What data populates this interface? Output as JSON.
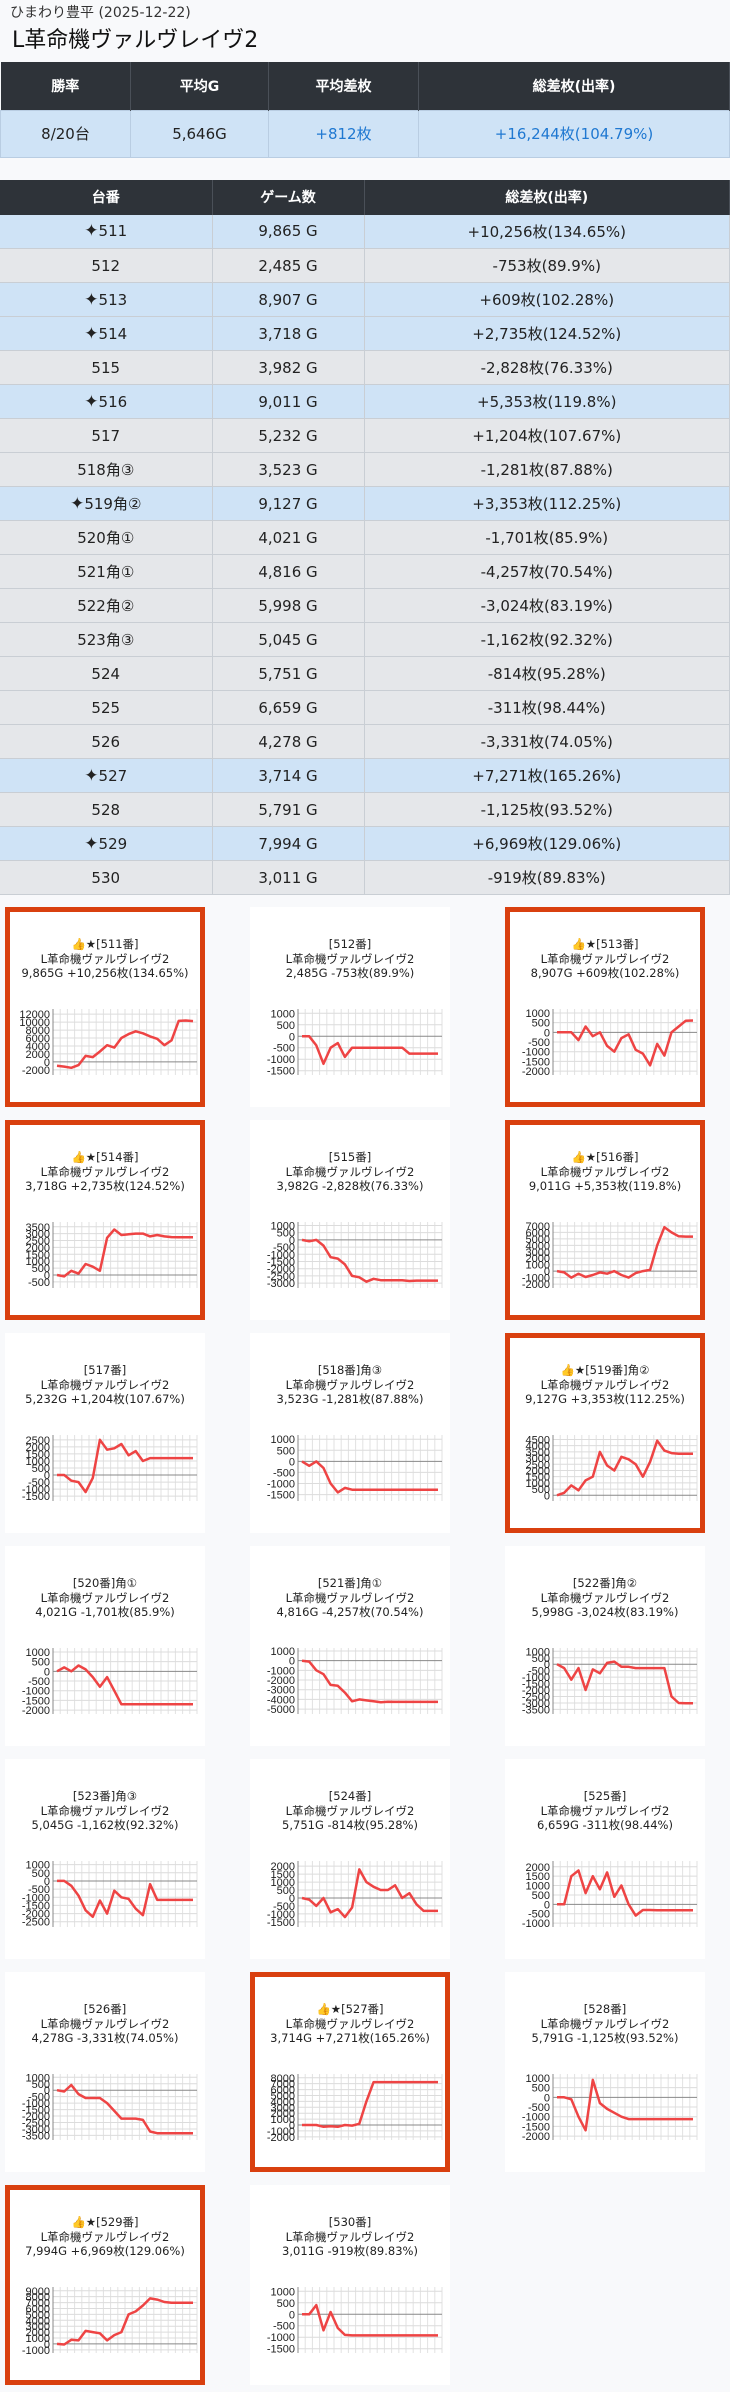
{
  "header": {
    "subtitle": "ひまわり豊平 (2025-12-22)",
    "title": "L革命機ヴァルヴレイヴ2"
  },
  "summary": {
    "headers": [
      "勝率",
      "平均G",
      "平均差枚",
      "総差枚(出率)"
    ],
    "values": [
      "8/20台",
      "5,646G",
      "+812枚",
      "+16,244枚(104.79%)"
    ]
  },
  "machines": {
    "headers": [
      "台番",
      "ゲーム数",
      "総差枚(出率)"
    ],
    "rows": [
      {
        "no": "511",
        "games": "9,865 G",
        "diff": "+10,256枚(134.65%)",
        "good": true
      },
      {
        "no": "512",
        "games": "2,485 G",
        "diff": "-753枚(89.9%)",
        "good": false
      },
      {
        "no": "513",
        "games": "8,907 G",
        "diff": "+609枚(102.28%)",
        "good": true
      },
      {
        "no": "514",
        "games": "3,718 G",
        "diff": "+2,735枚(124.52%)",
        "good": true
      },
      {
        "no": "515",
        "games": "3,982 G",
        "diff": "-2,828枚(76.33%)",
        "good": false
      },
      {
        "no": "516",
        "games": "9,011 G",
        "diff": "+5,353枚(119.8%)",
        "good": true
      },
      {
        "no": "517",
        "games": "5,232 G",
        "diff": "+1,204枚(107.67%)",
        "good": false
      },
      {
        "no": "518角③",
        "games": "3,523 G",
        "diff": "-1,281枚(87.88%)",
        "good": false
      },
      {
        "no": "519角②",
        "games": "9,127 G",
        "diff": "+3,353枚(112.25%)",
        "good": true
      },
      {
        "no": "520角①",
        "games": "4,021 G",
        "diff": "-1,701枚(85.9%)",
        "good": false
      },
      {
        "no": "521角①",
        "games": "4,816 G",
        "diff": "-4,257枚(70.54%)",
        "good": false
      },
      {
        "no": "522角②",
        "games": "5,998 G",
        "diff": "-3,024枚(83.19%)",
        "good": false
      },
      {
        "no": "523角③",
        "games": "5,045 G",
        "diff": "-1,162枚(92.32%)",
        "good": false
      },
      {
        "no": "524",
        "games": "5,751 G",
        "diff": "-814枚(95.28%)",
        "good": false
      },
      {
        "no": "525",
        "games": "6,659 G",
        "diff": "-311枚(98.44%)",
        "good": false
      },
      {
        "no": "526",
        "games": "4,278 G",
        "diff": "-3,331枚(74.05%)",
        "good": false
      },
      {
        "no": "527",
        "games": "3,714 G",
        "diff": "+7,271枚(165.26%)",
        "good": true
      },
      {
        "no": "528",
        "games": "5,791 G",
        "diff": "-1,125枚(93.52%)",
        "good": false
      },
      {
        "no": "529",
        "games": "7,994 G",
        "diff": "+6,969枚(129.06%)",
        "good": true
      },
      {
        "no": "530",
        "games": "3,011 G",
        "diff": "-919枚(89.83%)",
        "good": false
      }
    ]
  },
  "colors": {
    "highlight_border": "#d9400f",
    "line": "#ee4444",
    "header_bg": "#2e3339",
    "row_good": "#cfe3f6",
    "row_other": "#e5e7ea",
    "accent_text": "#1f78d1"
  },
  "icons": {
    "row_marker": "sparkle-icon",
    "card_marker": "thumbs-up-icon"
  },
  "chart_data": [
    {
      "type": "line",
      "title": [
        "👍★[511番]",
        "L革命機ヴァルヴレイヴ2",
        "9,865G +10,256枚(134.65%)"
      ],
      "good": true,
      "yticks": [
        12000,
        10000,
        8000,
        6000,
        4000,
        2000,
        0,
        -2000
      ],
      "ylim": [
        -2800,
        12800
      ],
      "values": [
        -1000,
        -1200,
        -1500,
        -800,
        1500,
        1200,
        2600,
        4200,
        3600,
        6000,
        7000,
        7700,
        7200,
        6400,
        5800,
        4200,
        5400,
        10300,
        10400,
        10256
      ]
    },
    {
      "type": "line",
      "title": [
        "[512番]",
        "L革命機ヴァルヴレイヴ2",
        "2,485G -753枚(89.9%)"
      ],
      "good": false,
      "yticks": [
        1000,
        500,
        0,
        -500,
        -1000,
        -1500
      ],
      "ylim": [
        -1600,
        1100
      ],
      "values": [
        0,
        0,
        -400,
        -1200,
        -500,
        -300,
        -900,
        -500,
        -500,
        -500,
        -500,
        -500,
        -500,
        -500,
        -500,
        -753,
        -753,
        -753,
        -753,
        -753
      ]
    },
    {
      "type": "line",
      "title": [
        "👍★[513番]",
        "L革命機ヴァルヴレイヴ2",
        "8,907G +609枚(102.28%)"
      ],
      "good": true,
      "yticks": [
        1000,
        500,
        0,
        -500,
        -1000,
        -1500,
        -2000
      ],
      "ylim": [
        -2100,
        1100
      ],
      "values": [
        0,
        0,
        0,
        -400,
        300,
        -200,
        0,
        -700,
        -1000,
        -300,
        -100,
        -900,
        -1100,
        -1700,
        -600,
        -1200,
        0,
        300,
        600,
        609
      ]
    },
    {
      "type": "line",
      "title": [
        "👍★[514番]",
        "L革命機ヴァルヴレイヴ2",
        "3,718G +2,735枚(124.52%)"
      ],
      "good": true,
      "yticks": [
        3500,
        3000,
        2500,
        2000,
        1500,
        1000,
        500,
        0,
        -500
      ],
      "ylim": [
        -800,
        3700
      ],
      "values": [
        0,
        -100,
        300,
        100,
        800,
        600,
        300,
        2700,
        3300,
        2900,
        2950,
        3000,
        3000,
        2800,
        2900,
        2800,
        2750,
        2740,
        2735,
        2735
      ]
    },
    {
      "type": "line",
      "title": [
        "[515番]",
        "L革命機ヴァルヴレイヴ2",
        "3,982G -2,828枚(76.33%)"
      ],
      "good": false,
      "yticks": [
        1000,
        500,
        0,
        -500,
        -1000,
        -1500,
        -2000,
        -2500,
        -3000
      ],
      "ylim": [
        -3200,
        1100
      ],
      "values": [
        0,
        -100,
        0,
        -400,
        -1200,
        -1300,
        -1700,
        -2500,
        -2600,
        -2900,
        -2700,
        -2800,
        -2800,
        -2800,
        -2800,
        -2850,
        -2828,
        -2828,
        -2828,
        -2828
      ]
    },
    {
      "type": "line",
      "title": [
        "👍★[516番]",
        "L革命機ヴァルヴレイヴ2",
        "9,011G +5,353枚(119.8%)"
      ],
      "good": true,
      "yticks": [
        7000,
        6000,
        5000,
        4000,
        3000,
        2000,
        1000,
        0,
        -1000,
        -2000
      ],
      "ylim": [
        -2300,
        7300
      ],
      "values": [
        0,
        -200,
        -1000,
        -400,
        -900,
        -600,
        -200,
        -400,
        0,
        -600,
        -1000,
        -300,
        0,
        200,
        4000,
        6800,
        6000,
        5400,
        5353,
        5353
      ]
    },
    {
      "type": "line",
      "title": [
        "[517番]",
        "L革命機ヴァルヴレイヴ2",
        "5,232G +1,204枚(107.67%)"
      ],
      "good": false,
      "yticks": [
        2500,
        2000,
        1500,
        1000,
        500,
        0,
        -500,
        -1000,
        -1500
      ],
      "ylim": [
        -1700,
        2700
      ],
      "values": [
        0,
        0,
        -400,
        -500,
        -1200,
        -200,
        2500,
        1800,
        1900,
        2200,
        1400,
        1700,
        1000,
        1200,
        1204,
        1204,
        1204,
        1204,
        1204,
        1204
      ]
    },
    {
      "type": "line",
      "title": [
        "[518番]角③",
        "L革命機ヴァルヴレイヴ2",
        "3,523G -1,281枚(87.88%)"
      ],
      "good": false,
      "yticks": [
        1000,
        500,
        0,
        -500,
        -1000,
        -1500
      ],
      "ylim": [
        -1700,
        1100
      ],
      "values": [
        0,
        -200,
        0,
        -300,
        -1000,
        -1400,
        -1200,
        -1281,
        -1281,
        -1281,
        -1281,
        -1281,
        -1281,
        -1281,
        -1281,
        -1281,
        -1281,
        -1281,
        -1281,
        -1281
      ]
    },
    {
      "type": "line",
      "title": [
        "👍★[519番]角②",
        "L革命機ヴァルヴレイヴ2",
        "9,127G +3,353枚(112.25%)"
      ],
      "good": true,
      "yticks": [
        4500,
        4000,
        3500,
        3000,
        2500,
        2000,
        1500,
        1000,
        500,
        0
      ],
      "ylim": [
        -300,
        4700
      ],
      "values": [
        0,
        200,
        800,
        400,
        1200,
        1500,
        3500,
        2400,
        2000,
        3100,
        2900,
        2500,
        1500,
        2700,
        4400,
        3600,
        3400,
        3353,
        3353,
        3353
      ]
    },
    {
      "type": "line",
      "title": [
        "[520番]角①",
        "L革命機ヴァルヴレイヴ2",
        "4,021G -1,701枚(85.9%)"
      ],
      "good": false,
      "yticks": [
        1000,
        500,
        0,
        -500,
        -1000,
        -1500,
        -2000
      ],
      "ylim": [
        -2100,
        1100
      ],
      "values": [
        0,
        200,
        0,
        300,
        100,
        -300,
        -800,
        -300,
        -1000,
        -1701,
        -1701,
        -1701,
        -1701,
        -1701,
        -1701,
        -1701,
        -1701,
        -1701,
        -1701,
        -1701
      ]
    },
    {
      "type": "line",
      "title": [
        "[521番]角①",
        "L革命機ヴァルヴレイヴ2",
        "4,816G -4,257枚(70.54%)"
      ],
      "good": false,
      "yticks": [
        1000,
        0,
        -1000,
        -2000,
        -3000,
        -4000,
        -5000
      ],
      "ylim": [
        -5300,
        1100
      ],
      "values": [
        0,
        -100,
        -1000,
        -1400,
        -2500,
        -2600,
        -3300,
        -4200,
        -4000,
        -4100,
        -4200,
        -4300,
        -4250,
        -4257,
        -4257,
        -4257,
        -4257,
        -4257,
        -4257,
        -4257
      ]
    },
    {
      "type": "line",
      "title": [
        "[522番]角②",
        "L革命機ヴァルヴレイヴ2",
        "5,998G -3,024枚(83.19%)"
      ],
      "good": false,
      "yticks": [
        1000,
        500,
        0,
        -500,
        -1000,
        -1500,
        -2000,
        -2500,
        -3000,
        -3500
      ],
      "ylim": [
        -3700,
        1100
      ],
      "values": [
        0,
        -300,
        -1200,
        -300,
        -2000,
        -400,
        -700,
        100,
        200,
        -200,
        -200,
        -300,
        -300,
        -300,
        -300,
        -300,
        -2500,
        -3000,
        -3024,
        -3024
      ]
    },
    {
      "type": "line",
      "title": [
        "[523番]角③",
        "L革命機ヴァルヴレイヴ2",
        "5,045G -1,162枚(92.32%)"
      ],
      "good": false,
      "yticks": [
        1000,
        500,
        0,
        -500,
        -1000,
        -1500,
        -2000,
        -2500
      ],
      "ylim": [
        -2700,
        1100
      ],
      "values": [
        0,
        0,
        -300,
        -900,
        -1800,
        -2200,
        -1200,
        -2000,
        -600,
        -1000,
        -1100,
        -1700,
        -2100,
        -200,
        -1162,
        -1162,
        -1162,
        -1162,
        -1162,
        -1162
      ]
    },
    {
      "type": "line",
      "title": [
        "[524番]",
        "L革命機ヴァルヴレイヴ2",
        "5,751G -814枚(95.28%)"
      ],
      "good": false,
      "yticks": [
        2000,
        1500,
        1000,
        500,
        0,
        -500,
        -1000,
        -1500
      ],
      "ylim": [
        -1700,
        2200
      ],
      "values": [
        0,
        -100,
        -500,
        0,
        -900,
        -700,
        -1200,
        -600,
        1800,
        1000,
        700,
        500,
        500,
        800,
        0,
        300,
        -400,
        -814,
        -814,
        -814
      ]
    },
    {
      "type": "line",
      "title": [
        "[525番]",
        "L革命機ヴァルヴレイヴ2",
        "6,659G -311枚(98.44%)"
      ],
      "good": false,
      "yticks": [
        2000,
        1500,
        1000,
        500,
        0,
        -500,
        -1000
      ],
      "ylim": [
        -1100,
        2200
      ],
      "values": [
        0,
        0,
        1500,
        1800,
        600,
        1500,
        800,
        1700,
        400,
        1000,
        0,
        -600,
        -300,
        -300,
        -311,
        -311,
        -311,
        -311,
        -311,
        -311
      ]
    },
    {
      "type": "line",
      "title": [
        "[526番]",
        "L革命機ヴァルヴレイヴ2",
        "4,278G -3,331枚(74.05%)"
      ],
      "good": false,
      "yticks": [
        1000,
        500,
        0,
        -500,
        -1000,
        -1500,
        -2000,
        -2500,
        -3000,
        -3500
      ],
      "ylim": [
        -3700,
        1100
      ],
      "values": [
        0,
        -100,
        400,
        -300,
        -600,
        -600,
        -600,
        -1000,
        -1600,
        -2200,
        -2200,
        -2200,
        -2300,
        -3200,
        -3331,
        -3331,
        -3331,
        -3331,
        -3331,
        -3331
      ]
    },
    {
      "type": "line",
      "title": [
        "👍★[527番]",
        "L革命機ヴァルヴレイヴ2",
        "3,714G +7,271枚(165.26%)"
      ],
      "good": true,
      "yticks": [
        8000,
        7000,
        6000,
        5000,
        4000,
        3000,
        2000,
        1000,
        0,
        -1000,
        -2000
      ],
      "ylim": [
        -2200,
        8300
      ],
      "values": [
        0,
        0,
        0,
        -300,
        -200,
        -300,
        0,
        -100,
        200,
        4000,
        7271,
        7271,
        7271,
        7271,
        7271,
        7271,
        7271,
        7271,
        7271,
        7271
      ]
    },
    {
      "type": "line",
      "title": [
        "[528番]",
        "L革命機ヴァルヴレイヴ2",
        "5,791G -1,125枚(93.52%)"
      ],
      "good": false,
      "yticks": [
        1000,
        500,
        0,
        -500,
        -1000,
        -1500,
        -2000
      ],
      "ylim": [
        -2100,
        1100
      ],
      "values": [
        0,
        0,
        -100,
        -1000,
        -1700,
        900,
        -300,
        -600,
        -800,
        -1000,
        -1125,
        -1125,
        -1125,
        -1125,
        -1125,
        -1125,
        -1125,
        -1125,
        -1125,
        -1125
      ]
    },
    {
      "type": "line",
      "title": [
        "👍★[529番]",
        "L革命機ヴァルヴレイヴ2",
        "7,994G +6,969枚(129.06%)"
      ],
      "good": true,
      "yticks": [
        9000,
        8000,
        7000,
        6000,
        5000,
        4000,
        3000,
        2000,
        1000,
        0,
        -1000
      ],
      "ylim": [
        -1200,
        9300
      ],
      "values": [
        0,
        -100,
        700,
        600,
        2200,
        2000,
        1800,
        600,
        1500,
        2000,
        5000,
        5500,
        6500,
        7700,
        7500,
        7100,
        6969,
        6969,
        6969,
        6969
      ]
    },
    {
      "type": "line",
      "title": [
        "[530番]",
        "L革命機ヴァルヴレイヴ2",
        "3,011G -919枚(89.83%)"
      ],
      "good": false,
      "yticks": [
        1000,
        500,
        0,
        -500,
        -1000,
        -1500
      ],
      "ylim": [
        -1600,
        1100
      ],
      "values": [
        0,
        0,
        400,
        -700,
        100,
        -600,
        -900,
        -919,
        -919,
        -919,
        -919,
        -919,
        -919,
        -919,
        -919,
        -919,
        -919,
        -919,
        -919,
        -919
      ]
    }
  ]
}
